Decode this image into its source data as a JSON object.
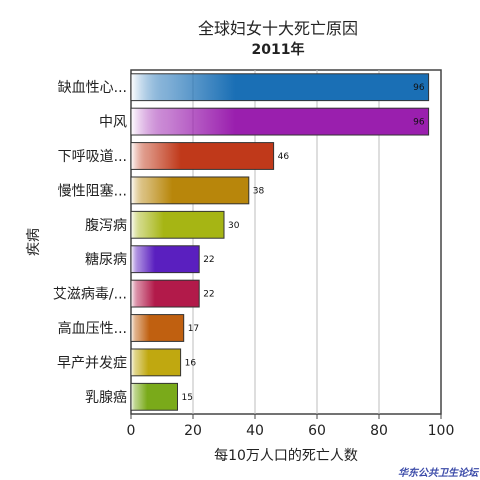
{
  "chart_data": {
    "type": "bar",
    "orientation": "horizontal",
    "title": "全球妇女十大死亡原因",
    "subtitle": "2011年",
    "xlabel": "每10万人口的死亡人数",
    "ylabel": "疾病",
    "xlim": [
      0,
      100
    ],
    "xticks": [
      0,
      20,
      40,
      60,
      80,
      100
    ],
    "grid": true,
    "categories": [
      "缺血性心...",
      "中风",
      "下呼吸道...",
      "慢性阻塞...",
      "腹泻病",
      "糖尿病",
      "艾滋病毒/...",
      "高血压性...",
      "早产并发症",
      "乳腺癌"
    ],
    "values": [
      96,
      96,
      46,
      38,
      30,
      22,
      22,
      17,
      16,
      15
    ],
    "colors": [
      "#1a6fb5",
      "#9a1fae",
      "#c0391a",
      "#b8860b",
      "#a6b514",
      "#5a1fbf",
      "#b21a4a",
      "#c06010",
      "#c0a810",
      "#7aaa1a"
    ]
  },
  "watermark": "华东公共卫生论坛"
}
